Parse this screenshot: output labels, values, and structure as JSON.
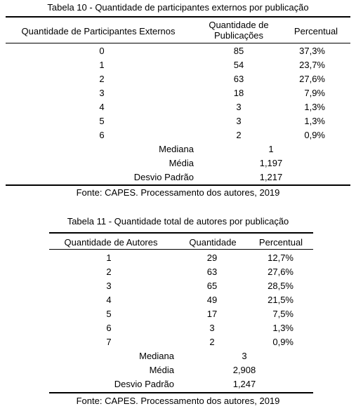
{
  "table10": {
    "caption": "Tabela 10 - Quantidade de participantes externos por publicação",
    "headers": {
      "col1": "Quantidade de Participantes Externos",
      "col2_line1": "Quantidade de",
      "col2_line2": "Publicações",
      "col3": "Percentual"
    },
    "rows": [
      {
        "a": "0",
        "b": "85",
        "c": "37,3%"
      },
      {
        "a": "1",
        "b": "54",
        "c": "23,7%"
      },
      {
        "a": "2",
        "b": "63",
        "c": "27,6%"
      },
      {
        "a": "3",
        "b": "18",
        "c": "7,9%"
      },
      {
        "a": "4",
        "b": "3",
        "c": "1,3%"
      },
      {
        "a": "5",
        "b": "3",
        "c": "1,3%"
      },
      {
        "a": "6",
        "b": "2",
        "c": "0,9%"
      }
    ],
    "stats": [
      {
        "label": "Mediana",
        "value": "1"
      },
      {
        "label": "Média",
        "value": "1,197"
      },
      {
        "label": "Desvio Padrão",
        "value": "1,217"
      }
    ],
    "source": "Fonte: CAPES. Processamento dos autores, 2019"
  },
  "table11": {
    "caption": "Tabela 11 - Quantidade total de autores por publicação",
    "headers": {
      "col1": "Quantidade de Autores",
      "col2": "Quantidade",
      "col3": "Percentual"
    },
    "rows": [
      {
        "a": "1",
        "b": "29",
        "c": "12,7%"
      },
      {
        "a": "2",
        "b": "63",
        "c": "27,6%"
      },
      {
        "a": "3",
        "b": "65",
        "c": "28,5%"
      },
      {
        "a": "4",
        "b": "49",
        "c": "21,5%"
      },
      {
        "a": "5",
        "b": "17",
        "c": "7,5%"
      },
      {
        "a": "6",
        "b": "3",
        "c": "1,3%"
      },
      {
        "a": "7",
        "b": "2",
        "c": "0,9%"
      }
    ],
    "stats": [
      {
        "label": "Mediana",
        "value": "3"
      },
      {
        "label": "Média",
        "value": "2,908"
      },
      {
        "label": "Desvio Padrão",
        "value": "1,247"
      }
    ],
    "source": "Fonte: CAPES. Processamento dos autores, 2019"
  }
}
